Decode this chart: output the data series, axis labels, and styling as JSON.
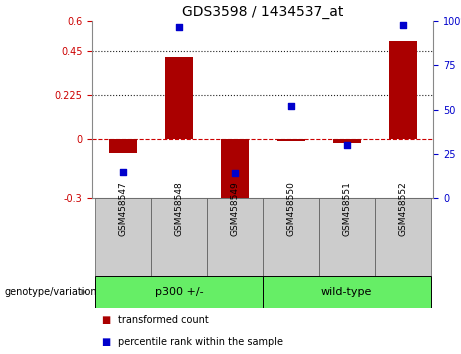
{
  "title": "GDS3598 / 1434537_at",
  "samples": [
    "GSM458547",
    "GSM458548",
    "GSM458549",
    "GSM458550",
    "GSM458551",
    "GSM458552"
  ],
  "red_values": [
    -0.07,
    0.42,
    -0.32,
    -0.01,
    -0.02,
    0.5
  ],
  "blue_values": [
    15,
    97,
    14,
    52,
    30,
    98
  ],
  "ylim_left": [
    -0.3,
    0.6
  ],
  "ylim_right": [
    0,
    100
  ],
  "yticks_left": [
    -0.3,
    0,
    0.225,
    0.45,
    0.6
  ],
  "yticks_right": [
    0,
    25,
    50,
    75,
    100
  ],
  "hline_y": [
    0,
    0.225,
    0.45
  ],
  "hline_styles": [
    "dashed",
    "dotted",
    "dotted"
  ],
  "hline_colors": [
    "#cc0000",
    "#222222",
    "#222222"
  ],
  "red_color": "#aa0000",
  "blue_color": "#0000cc",
  "bar_width": 0.5,
  "group1_label": "p300 +/-",
  "group2_label": "wild-type",
  "group_color": "#66ee66",
  "group_label_text": "genotype/variation",
  "legend_red": "transformed count",
  "legend_blue": "percentile rank within the sample",
  "right_axis_color": "#0000cc",
  "left_axis_color": "#cc0000",
  "background_color": "#ffffff",
  "sample_box_color": "#cccccc",
  "sample_box_edge": "#555555",
  "fig_width": 4.61,
  "fig_height": 3.54,
  "dpi": 100
}
